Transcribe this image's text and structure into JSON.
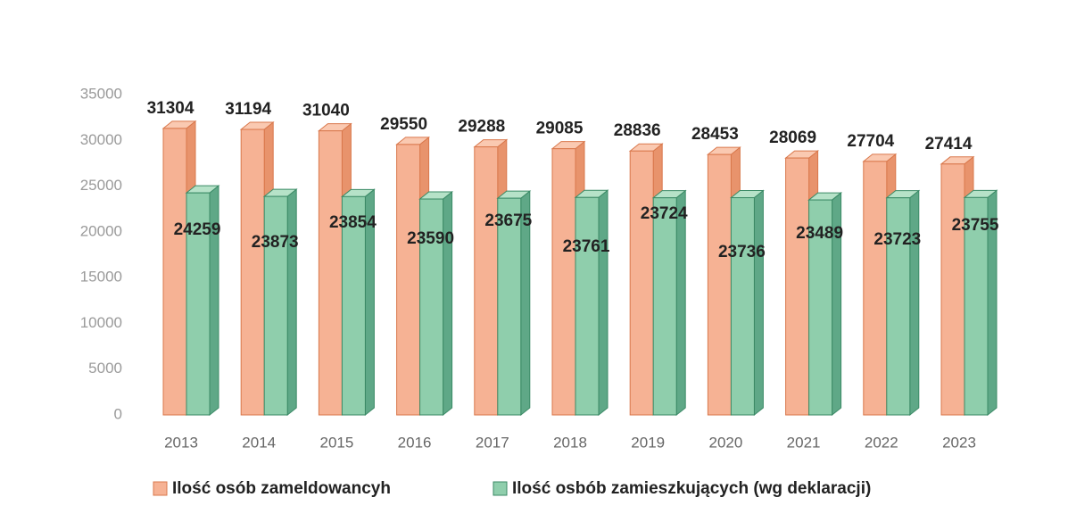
{
  "chart_data": {
    "type": "bar3d",
    "categories": [
      "2013",
      "2014",
      "2015",
      "2016",
      "2017",
      "2018",
      "2019",
      "2020",
      "2021",
      "2022",
      "2023"
    ],
    "series": [
      {
        "name": "Ilość osób zameldowancyh",
        "color": "#f6b294",
        "values": [
          31304,
          31194,
          31040,
          29550,
          29288,
          29085,
          28836,
          28453,
          28069,
          27704,
          27414
        ]
      },
      {
        "name": "Ilość osbób zamieszkujących (wg deklaracji)",
        "color": "#8fceac",
        "values": [
          24259,
          23873,
          23854,
          23590,
          23675,
          23761,
          23724,
          23736,
          23489,
          23723,
          23755
        ]
      }
    ],
    "ylim": [
      0,
      35000
    ],
    "yticks": [
      0,
      5000,
      10000,
      15000,
      20000,
      25000,
      30000,
      35000
    ],
    "grid": false,
    "legend": "bottom"
  }
}
